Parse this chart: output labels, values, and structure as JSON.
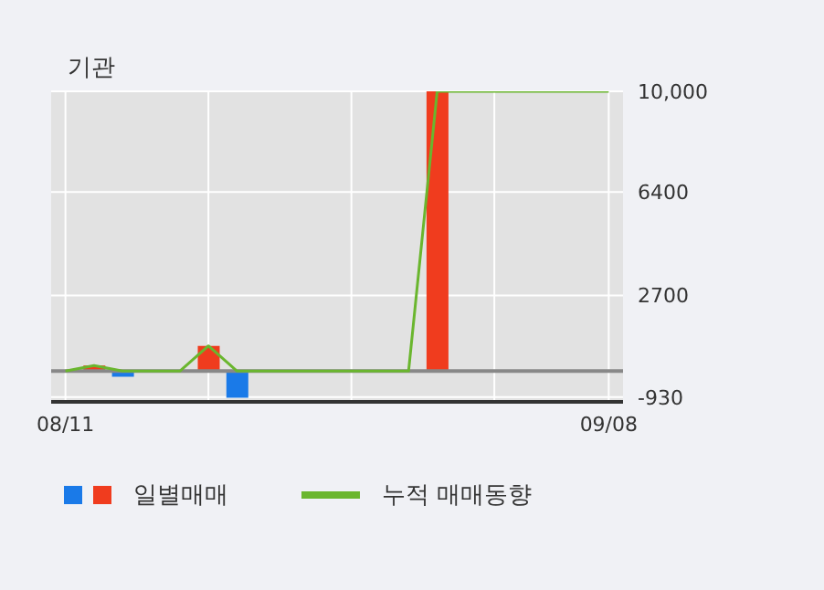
{
  "chart_data": {
    "type": "bar",
    "title": "기관",
    "categories": [
      "08/11",
      null,
      null,
      null,
      null,
      null,
      null,
      null,
      null,
      null,
      null,
      null,
      null,
      null,
      null,
      null,
      null,
      null,
      null,
      "09/08"
    ],
    "series": [
      {
        "name": "일별매매",
        "colors": [
          "#f03c1e",
          "#f03c1e",
          "#1a7ae8",
          "#f03c1e",
          "#f03c1e",
          "#f03c1e",
          "#1a7ae8",
          "#f03c1e",
          "#f03c1e",
          "#f03c1e",
          "#f03c1e",
          "#f03c1e",
          "#f03c1e",
          "#f03c1e",
          "#f03c1e",
          "#f03c1e",
          "#f03c1e",
          "#f03c1e",
          "#f03c1e",
          "#f03c1e"
        ],
        "values": [
          null,
          200,
          -200,
          null,
          null,
          900,
          -950,
          null,
          null,
          null,
          null,
          null,
          null,
          10000,
          null,
          null,
          null,
          null,
          null,
          null
        ]
      },
      {
        "type": "line",
        "name": "누적 매매동향",
        "color": "#6ab62e",
        "values": [
          0,
          200,
          0,
          0,
          0,
          900,
          0,
          0,
          0,
          0,
          0,
          0,
          0,
          10000,
          10000,
          10000,
          10000,
          10000,
          10000,
          10000
        ]
      }
    ],
    "ylim": [
      -1100,
      10000
    ],
    "yticks": [
      {
        "value": -930,
        "label": "-930"
      },
      2700,
      6400,
      {
        "value": 10000,
        "label": "10,000"
      }
    ],
    "ref_lines": [
      {
        "axis": "y",
        "value": 0,
        "color": "#888888"
      }
    ],
    "grid": true,
    "legend": "bottom"
  }
}
